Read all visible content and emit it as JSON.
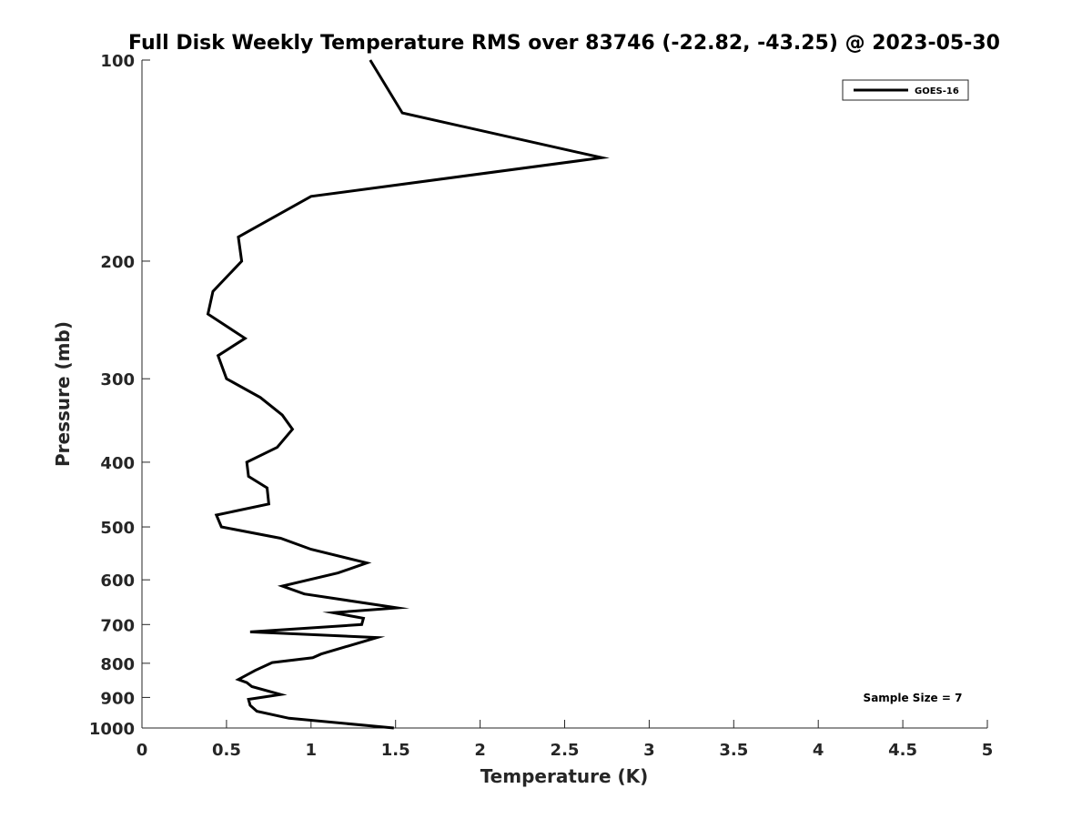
{
  "chart_data": {
    "type": "line",
    "title": "Full Disk Weekly Temperature RMS over 83746 (-22.82, -43.25) @ 2023-05-30",
    "xlabel": "Temperature (K)",
    "ylabel": "Pressure (mb)",
    "xlim": [
      0,
      5
    ],
    "ylim": [
      100,
      1000
    ],
    "y_scale": "log",
    "y_reversed": true,
    "grid": false,
    "x_ticks": [
      0,
      0.5,
      1,
      1.5,
      2,
      2.5,
      3,
      3.5,
      4,
      4.5,
      5
    ],
    "x_tick_labels": [
      "0",
      "0.5",
      "1",
      "1.5",
      "2",
      "2.5",
      "3",
      "3.5",
      "4",
      "4.5",
      "5"
    ],
    "y_ticks": [
      100,
      200,
      300,
      400,
      500,
      600,
      700,
      800,
      900,
      1000
    ],
    "y_tick_labels": [
      "100",
      "200",
      "300",
      "400",
      "500",
      "600",
      "700",
      "800",
      "900",
      "1000"
    ],
    "legend": {
      "position": "top-right",
      "entries": [
        "GOES-16"
      ]
    },
    "annotations": [
      "Sample Size = 7"
    ],
    "series": [
      {
        "name": "GOES-16",
        "color": "#000000",
        "points": [
          [
            1.35,
            100
          ],
          [
            1.54,
            120
          ],
          [
            2.72,
            140
          ],
          [
            1.0,
            160
          ],
          [
            0.57,
            184
          ],
          [
            0.59,
            200
          ],
          [
            0.42,
            222
          ],
          [
            0.39,
            240
          ],
          [
            0.61,
            261
          ],
          [
            0.45,
            277
          ],
          [
            0.5,
            300
          ],
          [
            0.7,
            320
          ],
          [
            0.83,
            340
          ],
          [
            0.89,
            357
          ],
          [
            0.8,
            380
          ],
          [
            0.62,
            400
          ],
          [
            0.63,
            420
          ],
          [
            0.74,
            437
          ],
          [
            0.75,
            462
          ],
          [
            0.44,
            480
          ],
          [
            0.47,
            500
          ],
          [
            0.82,
            520
          ],
          [
            1.0,
            540
          ],
          [
            1.33,
            566
          ],
          [
            1.16,
            586
          ],
          [
            0.83,
            613
          ],
          [
            0.96,
            630
          ],
          [
            1.51,
            661
          ],
          [
            1.13,
            672
          ],
          [
            1.31,
            685
          ],
          [
            1.3,
            700
          ],
          [
            0.64,
            718
          ],
          [
            1.39,
            732
          ],
          [
            1.06,
            775
          ],
          [
            1.01,
            785
          ],
          [
            0.77,
            798
          ],
          [
            0.67,
            820
          ],
          [
            0.57,
            846
          ],
          [
            0.62,
            855
          ],
          [
            0.65,
            867
          ],
          [
            0.82,
            891
          ],
          [
            0.63,
            906
          ],
          [
            0.64,
            925
          ],
          [
            0.68,
            944
          ],
          [
            0.87,
            967
          ],
          [
            1.49,
            1000
          ]
        ]
      }
    ]
  }
}
